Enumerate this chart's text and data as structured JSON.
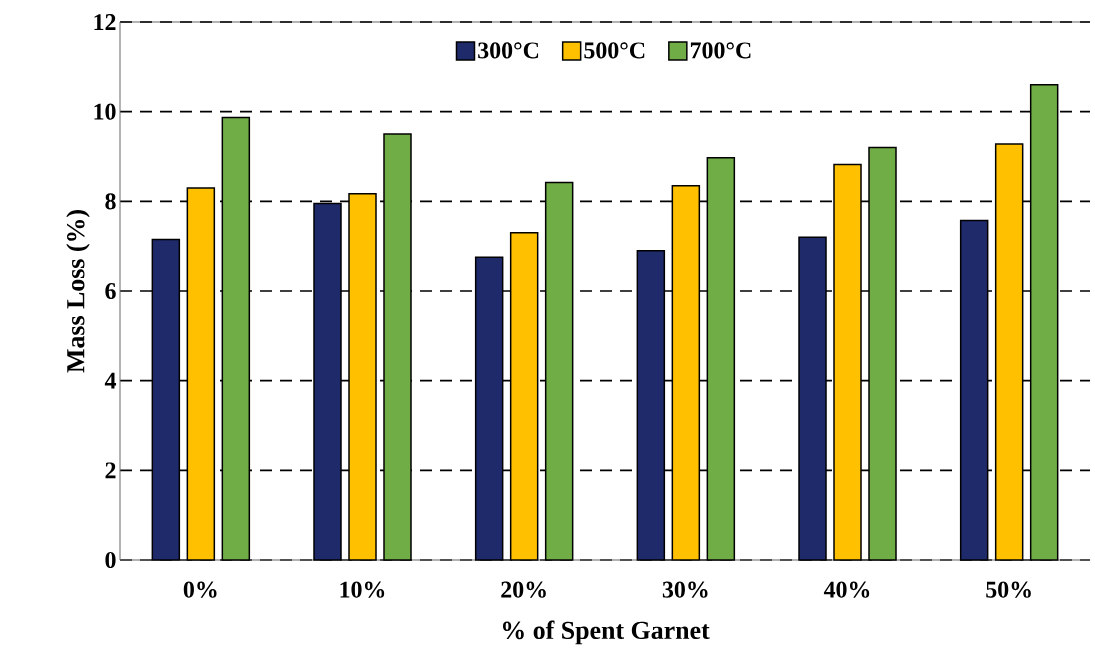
{
  "chart_data": {
    "type": "bar",
    "xlabel": "% of Spent Garnet",
    "ylabel": "Mass Loss (%)",
    "categories": [
      "0%",
      "10%",
      "20%",
      "30%",
      "40%",
      "50%"
    ],
    "series": [
      {
        "name": "300°C",
        "color": "#1f2a6b",
        "values": [
          7.15,
          7.95,
          6.75,
          6.9,
          7.2,
          7.57
        ]
      },
      {
        "name": "500°C",
        "color": "#ffc000",
        "values": [
          8.3,
          8.17,
          7.3,
          8.35,
          8.82,
          9.28
        ]
      },
      {
        "name": "700°C",
        "color": "#70ad47",
        "values": [
          9.87,
          9.5,
          8.42,
          8.97,
          9.2,
          10.6
        ]
      }
    ],
    "ylim": [
      0,
      12
    ],
    "yticks": [
      0,
      2,
      4,
      6,
      8,
      10,
      12
    ],
    "grid": "y",
    "legend": "top"
  }
}
